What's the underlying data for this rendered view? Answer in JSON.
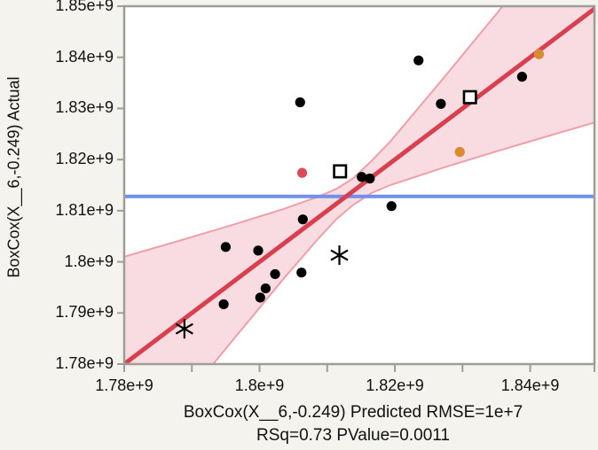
{
  "figure": {
    "background": "#f4f3ee",
    "plot_background": "#ffffff",
    "frame_color": "#9e9d97",
    "text_color": "#111111"
  },
  "chart_data": {
    "type": "scatter",
    "title": "",
    "ylabel": "BoxCox(X__6,-0.249) Actual",
    "xlabel": "BoxCox(X__6,-0.249) Predicted RMSE=1e+7",
    "xlabel_line2": "RSq=0.73 PValue=0.0011",
    "units": "values are in 1e+9",
    "x_axis": {
      "min": 1.78,
      "max": 1.8495,
      "ticks": [
        {
          "value": 1.78,
          "label": "1.78e+9"
        },
        {
          "value": 1.79,
          "label": ""
        },
        {
          "value": 1.8,
          "label": "1.8e+9"
        },
        {
          "value": 1.81,
          "label": ""
        },
        {
          "value": 1.82,
          "label": "1.82e+9"
        },
        {
          "value": 1.83,
          "label": ""
        },
        {
          "value": 1.84,
          "label": "1.84e+9"
        },
        {
          "value": 1.8495,
          "label": ""
        }
      ]
    },
    "y_axis": {
      "min": 1.78,
      "max": 1.85,
      "ticks": [
        {
          "value": 1.85,
          "label": "1.85e+9"
        },
        {
          "value": 1.84,
          "label": "1.84e+9"
        },
        {
          "value": 1.83,
          "label": "1.83e+9"
        },
        {
          "value": 1.82,
          "label": "1.82e+9"
        },
        {
          "value": 1.81,
          "label": "1.81e+9"
        },
        {
          "value": 1.8,
          "label": "1.8e+9"
        },
        {
          "value": 1.79,
          "label": "1.79e+9"
        },
        {
          "value": 1.78,
          "label": "1.78e+9"
        }
      ]
    },
    "points": [
      {
        "pred": 1.7889,
        "actual": 1.7869,
        "marker": "asterisk",
        "color": "#000000"
      },
      {
        "pred": 1.7947,
        "actual": 1.7917,
        "marker": "dot",
        "color": "#000000"
      },
      {
        "pred": 1.8001,
        "actual": 1.793,
        "marker": "dot",
        "color": "#000000"
      },
      {
        "pred": 1.8009,
        "actual": 1.7948,
        "marker": "dot",
        "color": "#000000"
      },
      {
        "pred": 1.8023,
        "actual": 1.7976,
        "marker": "dot",
        "color": "#000000"
      },
      {
        "pred": 1.8062,
        "actual": 1.7979,
        "marker": "dot",
        "color": "#000000"
      },
      {
        "pred": 1.795,
        "actual": 1.8029,
        "marker": "dot",
        "color": "#000000"
      },
      {
        "pred": 1.7998,
        "actual": 1.8022,
        "marker": "dot",
        "color": "#000000"
      },
      {
        "pred": 1.8064,
        "actual": 1.8083,
        "marker": "dot",
        "color": "#000000"
      },
      {
        "pred": 1.8118,
        "actual": 1.8013,
        "marker": "asterisk",
        "color": "#000000"
      },
      {
        "pred": 1.8063,
        "actual": 1.8174,
        "marker": "dot",
        "color": "#dd4b58"
      },
      {
        "pred": 1.8119,
        "actual": 1.8177,
        "marker": "square",
        "color": "#000000"
      },
      {
        "pred": 1.8151,
        "actual": 1.8166,
        "marker": "dot",
        "color": "#000000"
      },
      {
        "pred": 1.8163,
        "actual": 1.8163,
        "marker": "dot",
        "color": "#000000"
      },
      {
        "pred": 1.8195,
        "actual": 1.8109,
        "marker": "dot",
        "color": "#000000"
      },
      {
        "pred": 1.806,
        "actual": 1.8312,
        "marker": "dot",
        "color": "#000000"
      },
      {
        "pred": 1.8235,
        "actual": 1.8394,
        "marker": "dot",
        "color": "#000000"
      },
      {
        "pred": 1.8268,
        "actual": 1.8309,
        "marker": "dot",
        "color": "#000000"
      },
      {
        "pred": 1.8311,
        "actual": 1.8322,
        "marker": "square",
        "color": "#000000"
      },
      {
        "pred": 1.8296,
        "actual": 1.8215,
        "marker": "dot",
        "color": "#d98b32"
      },
      {
        "pred": 1.8388,
        "actual": 1.8362,
        "marker": "dot",
        "color": "#000000"
      },
      {
        "pred": 1.8413,
        "actual": 1.8406,
        "marker": "dot",
        "color": "#d98b32"
      }
    ],
    "fit_line": {
      "x1": 1.78,
      "y1": 1.78,
      "x2": 1.8495,
      "y2": 1.8495,
      "color": "#d9404f"
    },
    "mean_line": {
      "y": 1.8128,
      "color": "#7090ea"
    },
    "confidence_band": {
      "fill": "#f8dce1",
      "edge_color": "#f09fa8",
      "samples": [
        {
          "pred": 1.78,
          "lower": 1.7588,
          "upper": 1.801
        },
        {
          "pred": 1.7878,
          "lower": 1.7714,
          "upper": 1.804
        },
        {
          "pred": 1.7957,
          "lower": 1.7841,
          "upper": 1.8071
        },
        {
          "pred": 1.8035,
          "lower": 1.7966,
          "upper": 1.8103
        },
        {
          "pred": 1.8088,
          "lower": 1.8047,
          "upper": 1.8128
        },
        {
          "pred": 1.8114,
          "lower": 1.8084,
          "upper": 1.8143
        },
        {
          "pred": 1.8138,
          "lower": 1.8111,
          "upper": 1.8163
        },
        {
          "pred": 1.8166,
          "lower": 1.8135,
          "upper": 1.8198
        },
        {
          "pred": 1.8193,
          "lower": 1.815,
          "upper": 1.8235
        },
        {
          "pred": 1.8271,
          "lower": 1.8184,
          "upper": 1.8358
        },
        {
          "pred": 1.835,
          "lower": 1.8216,
          "upper": 1.8485
        },
        {
          "pred": 1.8429,
          "lower": 1.8247,
          "upper": 1.8612
        },
        {
          "pred": 1.8494,
          "lower": 1.8272,
          "upper": 1.8718
        }
      ]
    }
  }
}
